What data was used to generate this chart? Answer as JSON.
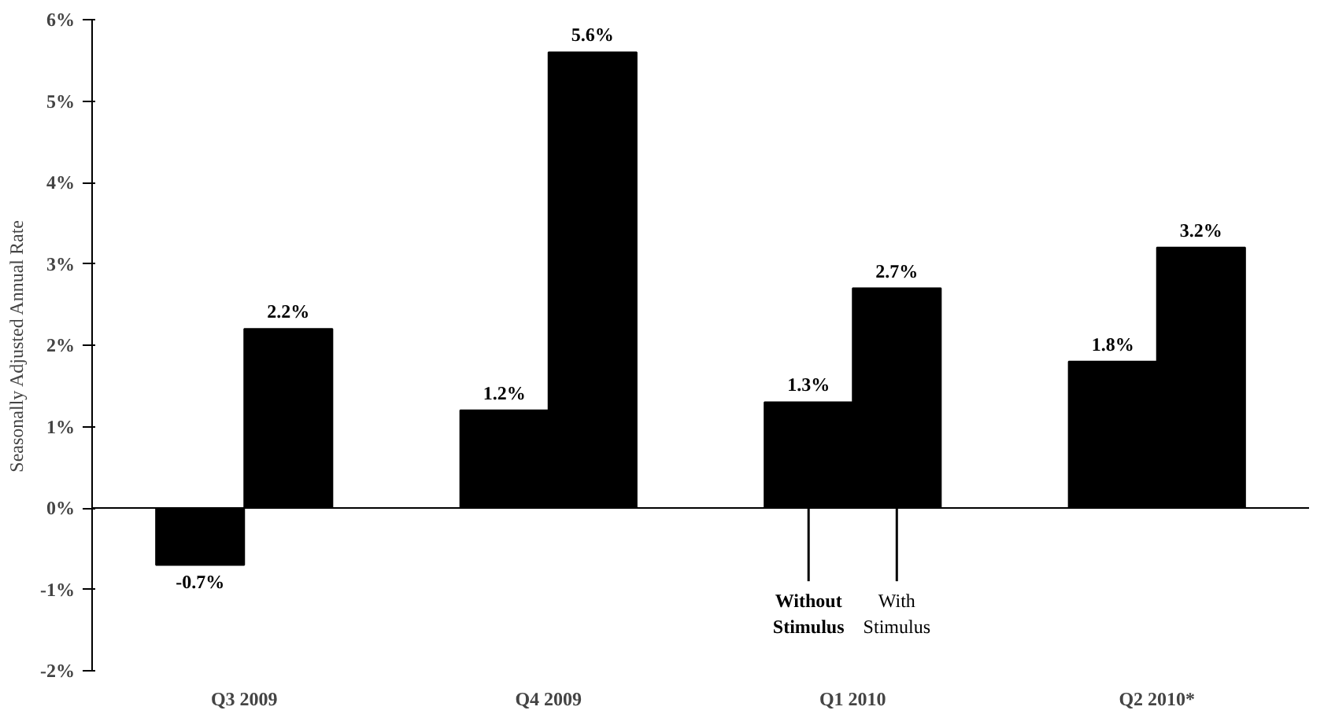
{
  "chart_data": {
    "type": "bar",
    "ylabel": "Seasonally Adjusted Annual Rate",
    "categories": [
      "Q3 2009",
      "Q4 2009",
      "Q1 2010",
      "Q2 2010*"
    ],
    "series": [
      {
        "name": "Without Stimulus",
        "color": "#000000",
        "values": [
          -0.7,
          1.2,
          1.3,
          1.8
        ],
        "value_labels": [
          "-0.7%",
          "1.2%",
          "1.3%",
          "1.8%"
        ]
      },
      {
        "name": "With Stimulus",
        "color": "#000000",
        "values": [
          2.2,
          5.6,
          2.7,
          3.2
        ],
        "value_labels": [
          "2.2%",
          "5.6%",
          "2.7%",
          "3.2%"
        ]
      }
    ],
    "ylim": [
      -2,
      6
    ],
    "yticks": [
      {
        "value": -2,
        "label": "-2%"
      },
      {
        "value": -1,
        "label": "-1%"
      },
      {
        "value": 0,
        "label": "0%"
      },
      {
        "value": 1,
        "label": "1%"
      },
      {
        "value": 2,
        "label": "2%"
      },
      {
        "value": 3,
        "label": "3%"
      },
      {
        "value": 4,
        "label": "4%"
      },
      {
        "value": 5,
        "label": "5%"
      },
      {
        "value": 6,
        "label": "6%"
      }
    ],
    "ref_lines": [
      {
        "axis": "y",
        "value": 0,
        "color": "#000000"
      }
    ],
    "legend": false
  }
}
